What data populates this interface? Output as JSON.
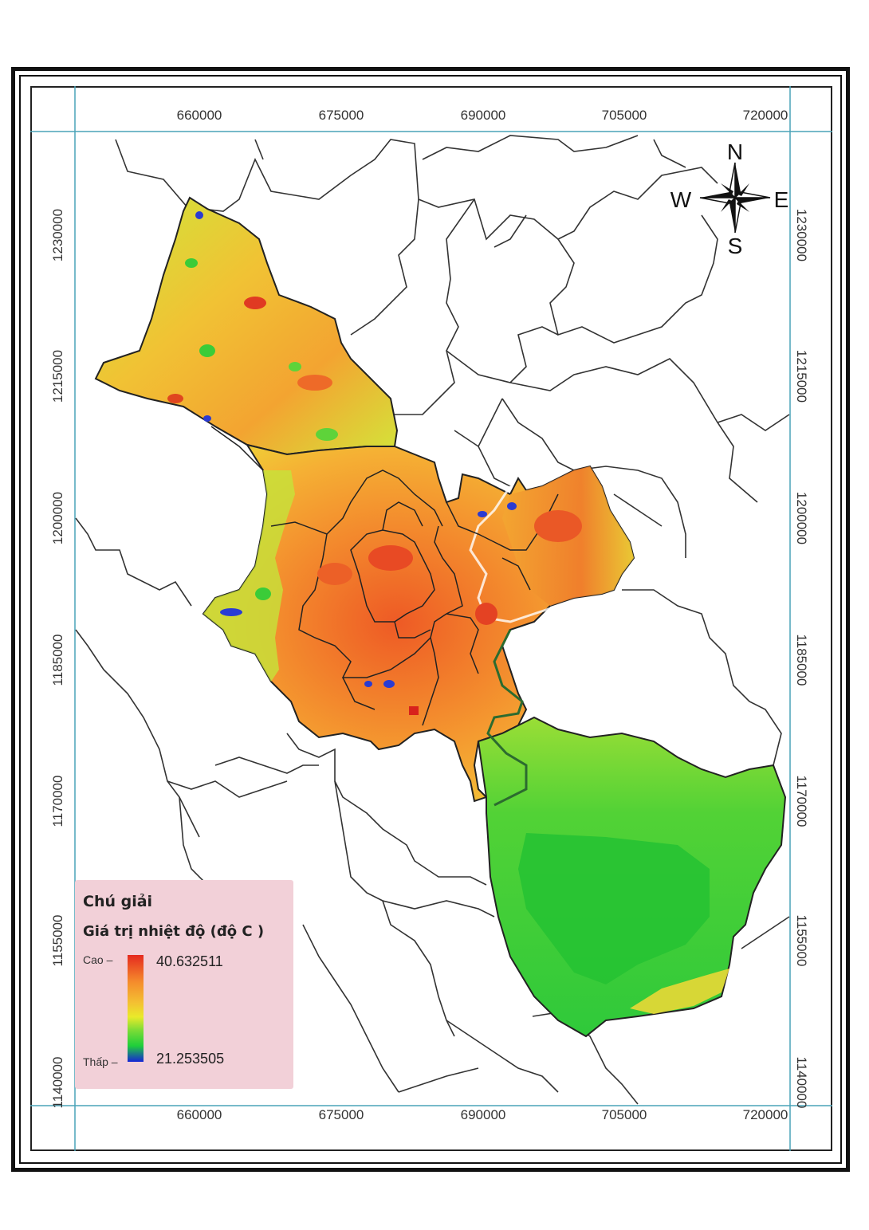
{
  "map": {
    "x_ticks": [
      "660000",
      "675000",
      "690000",
      "705000",
      "720000"
    ],
    "y_ticks": [
      "1230000",
      "1215000",
      "1200000",
      "1185000",
      "1170000",
      "1155000",
      "1140000"
    ],
    "compass": {
      "n": "N",
      "s": "S",
      "e": "E",
      "w": "W"
    }
  },
  "legend": {
    "title": "Chú giải",
    "subtitle": "Giá trị nhiệt độ (độ C )",
    "high_label": "Cao  –",
    "low_label": "Thấp  –",
    "high_value": "40.632511",
    "low_value": "21.253505"
  },
  "colors": {
    "hot": "#e52a1f",
    "warm": "#f58b2c",
    "mild": "#f4c132",
    "cool": "#1fcf3a",
    "cold": "#1626d6"
  }
}
